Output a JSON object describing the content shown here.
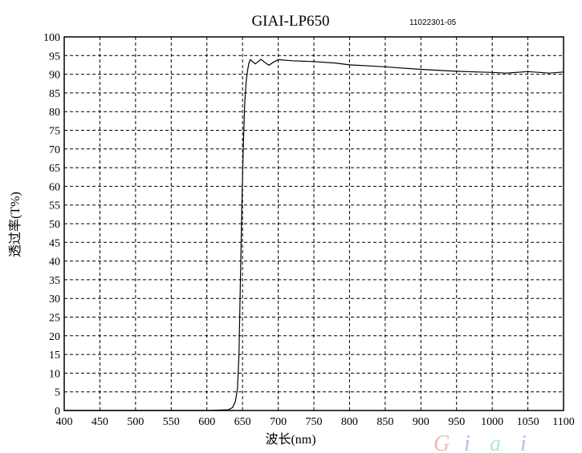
{
  "chart_data": {
    "type": "line",
    "title": "GIAI-LP650",
    "subtitle": "11022301-05",
    "xlabel": "波长(nm)",
    "ylabel": "透过率(T%)",
    "xlim": [
      400,
      1100
    ],
    "ylim": [
      0,
      100
    ],
    "xticks": [
      400,
      450,
      500,
      550,
      600,
      650,
      700,
      750,
      800,
      850,
      900,
      950,
      1000,
      1050,
      1100
    ],
    "yticks": [
      0,
      5,
      10,
      15,
      20,
      25,
      30,
      35,
      40,
      45,
      50,
      55,
      60,
      65,
      70,
      75,
      80,
      85,
      90,
      95,
      100
    ],
    "grid": true,
    "series": [
      {
        "x": [
          400,
          500,
          600,
          630,
          636,
          640,
          643,
          645,
          647,
          649,
          651,
          653,
          655,
          657,
          659,
          661,
          664,
          668,
          672,
          676,
          681,
          687,
          693,
          700,
          720,
          750,
          780,
          800,
          830,
          850,
          870,
          900,
          920,
          950,
          980,
          1000,
          1020,
          1050,
          1080,
          1100
        ],
        "y": [
          0,
          0,
          0,
          0.2,
          0.8,
          2.5,
          6,
          15,
          35,
          55,
          70,
          82,
          88,
          91,
          93,
          93.9,
          93.4,
          92.8,
          93.4,
          94,
          93.2,
          92.4,
          93.2,
          93.9,
          93.6,
          93.4,
          93,
          92.5,
          92.2,
          92,
          91.7,
          91.3,
          91.1,
          90.8,
          90.6,
          90.5,
          90.3,
          90.7,
          90.3,
          90.6
        ]
      }
    ]
  },
  "watermark": {
    "text": "Giai",
    "colors": [
      "#f4b6b6",
      "#b9b9f0",
      "#b6e6c8",
      "#b9b9f0"
    ]
  }
}
